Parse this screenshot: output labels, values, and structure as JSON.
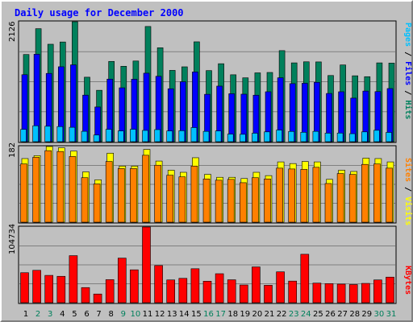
{
  "title": "Daily usage for December 2000",
  "colors": {
    "title": "#0000ff",
    "background": "#c0c0c0",
    "hits": "#00805c",
    "files": "#0000ff",
    "pages": "#00c0ff",
    "visits": "#ffff00",
    "sites": "#ff8000",
    "kbytes": "#ff0000",
    "weekday": "#000000",
    "weekend": "#00805c",
    "grid": "#808080"
  },
  "panels": {
    "top": {
      "max_label": "2126",
      "labels": [
        "Pages",
        "Files",
        "Hits"
      ]
    },
    "middle": {
      "max_label": "182",
      "labels": [
        "Sites",
        "Visits"
      ]
    },
    "bottom": {
      "max_label": "104734",
      "labels": [
        "KBytes"
      ]
    }
  },
  "chart_data": {
    "type": "bar",
    "categories": [
      "1",
      "2",
      "3",
      "4",
      "5",
      "6",
      "7",
      "8",
      "9",
      "10",
      "11",
      "12",
      "13",
      "14",
      "15",
      "16",
      "17",
      "18",
      "19",
      "20",
      "21",
      "22",
      "23",
      "24",
      "25",
      "26",
      "27",
      "28",
      "29",
      "30",
      "31"
    ],
    "weekend_days": [
      2,
      3,
      9,
      10,
      16,
      17,
      23,
      24,
      30,
      31
    ],
    "series": [
      {
        "name": "Hits",
        "panel": "top",
        "ymax": 2126,
        "values": [
          1545,
          2003,
          1727,
          1767,
          2126,
          1143,
          911,
          1423,
          1337,
          1430,
          2042,
          1665,
          1264,
          1327,
          1770,
          1260,
          1382,
          1186,
          1132,
          1220,
          1227,
          1614,
          1397,
          1416,
          1414,
          1173,
          1360,
          1168,
          1152,
          1397,
          1393
        ]
      },
      {
        "name": "Files",
        "panel": "top",
        "ymax": 2126,
        "values": [
          1187,
          1550,
          1210,
          1328,
          1362,
          825,
          615,
          1109,
          955,
          1107,
          1214,
          1159,
          938,
          1063,
          1236,
          840,
          985,
          850,
          842,
          824,
          885,
          1133,
          1029,
          1035,
          1052,
          855,
          885,
          772,
          897,
          888,
          942
        ]
      },
      {
        "name": "Pages",
        "panel": "top",
        "ymax": 2126,
        "values": [
          218,
          282,
          274,
          268,
          255,
          184,
          118,
          218,
          190,
          220,
          200,
          214,
          191,
          195,
          250,
          183,
          190,
          135,
          131,
          150,
          174,
          206,
          182,
          167,
          183,
          151,
          153,
          142,
          174,
          202,
          164
        ]
      },
      {
        "name": "Visits",
        "panel": "middle",
        "ymax": 182,
        "values": [
          153,
          160,
          182,
          179,
          171,
          121,
          102,
          166,
          135,
          135,
          175,
          147,
          125,
          120,
          155,
          115,
          108,
          108,
          105,
          120,
          112,
          145,
          141,
          146,
          145,
          103,
          125,
          122,
          154,
          153,
          145
        ]
      },
      {
        "name": "Sites",
        "panel": "middle",
        "ymax": 182,
        "values": [
          140,
          156,
          172,
          170,
          158,
          107,
          92,
          146,
          129,
          129,
          161,
          137,
          113,
          109,
          135,
          104,
          101,
          103,
          95,
          107,
          104,
          130,
          128,
          127,
          132,
          93,
          117,
          115,
          139,
          140,
          130
        ]
      },
      {
        "name": "KBytes",
        "panel": "bottom",
        "ymax": 104734,
        "values": [
          41500,
          44800,
          37800,
          36500,
          65100,
          20900,
          12000,
          31900,
          61700,
          45500,
          104734,
          51400,
          31500,
          33700,
          47000,
          29700,
          40100,
          31700,
          24500,
          49500,
          24100,
          42700,
          29900,
          67000,
          27100,
          26400,
          25700,
          25100,
          26700,
          31500,
          35400
        ]
      }
    ]
  }
}
